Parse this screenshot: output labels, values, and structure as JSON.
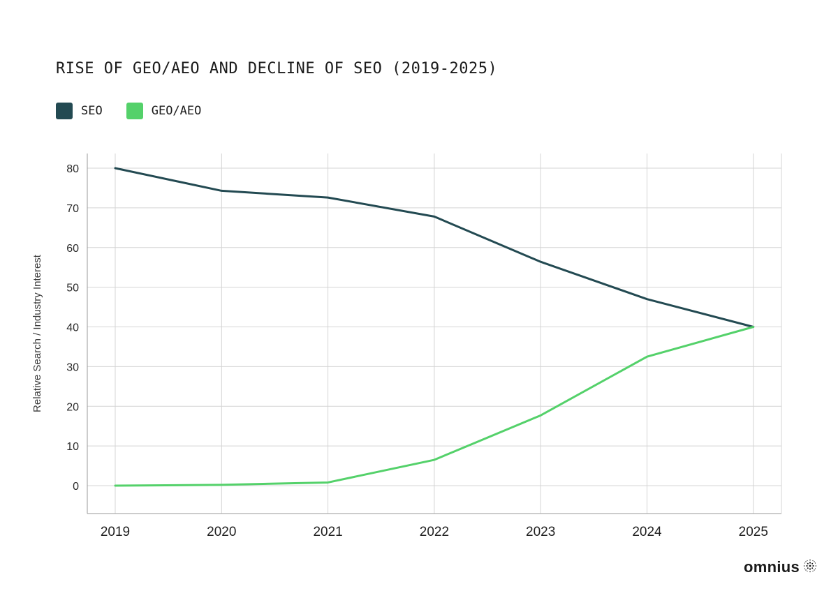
{
  "chart_data": {
    "type": "line",
    "title": "RISE OF GEO/AEO AND DECLINE OF SEO (2019-2025)",
    "xlabel": "",
    "ylabel": "Relative Search / Industry Interest",
    "categories": [
      "2019",
      "2020",
      "2021",
      "2022",
      "2023",
      "2024",
      "2025"
    ],
    "yticks": [
      "0",
      "10",
      "20",
      "30",
      "40",
      "50",
      "60",
      "70",
      "80"
    ],
    "ylim": [
      -7,
      82
    ],
    "grid": true,
    "legend_position": "top-left",
    "series": [
      {
        "name": "SEO",
        "color": "#234a52",
        "values": [
          80,
          74.3,
          72.6,
          67.8,
          56.4,
          47,
          40
        ]
      },
      {
        "name": "GEO/AEO",
        "color": "#54d16a",
        "values": [
          0,
          0.2,
          0.8,
          6.5,
          17.7,
          32.5,
          40
        ]
      }
    ]
  },
  "brand": {
    "name": "omnius",
    "icon": "dotted-sphere-icon"
  }
}
